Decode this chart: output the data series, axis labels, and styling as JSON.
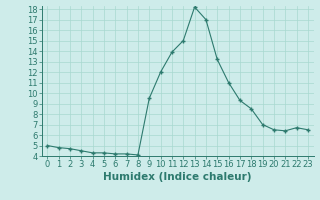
{
  "x": [
    0,
    1,
    2,
    3,
    4,
    5,
    6,
    7,
    8,
    9,
    10,
    11,
    12,
    13,
    14,
    15,
    16,
    17,
    18,
    19,
    20,
    21,
    22,
    23
  ],
  "y": [
    5.0,
    4.8,
    4.7,
    4.5,
    4.3,
    4.3,
    4.2,
    4.2,
    4.1,
    9.5,
    12.0,
    13.9,
    15.0,
    18.2,
    17.0,
    13.2,
    11.0,
    9.3,
    8.5,
    7.0,
    6.5,
    6.4,
    6.7,
    6.5
  ],
  "xlabel": "Humidex (Indice chaleur)",
  "ylim_min": 4,
  "ylim_max": 18,
  "xlim_min": 0,
  "xlim_max": 23,
  "line_color": "#2d7a6e",
  "marker_color": "#2d7a6e",
  "bg_color": "#ceecea",
  "grid_color": "#a8d8d0",
  "spine_color": "#2d7a6e",
  "xlabel_color": "#2d7a6e",
  "tick_color": "#2d7a6e",
  "xlabel_fontsize": 7.5,
  "tick_fontsize": 6.0
}
